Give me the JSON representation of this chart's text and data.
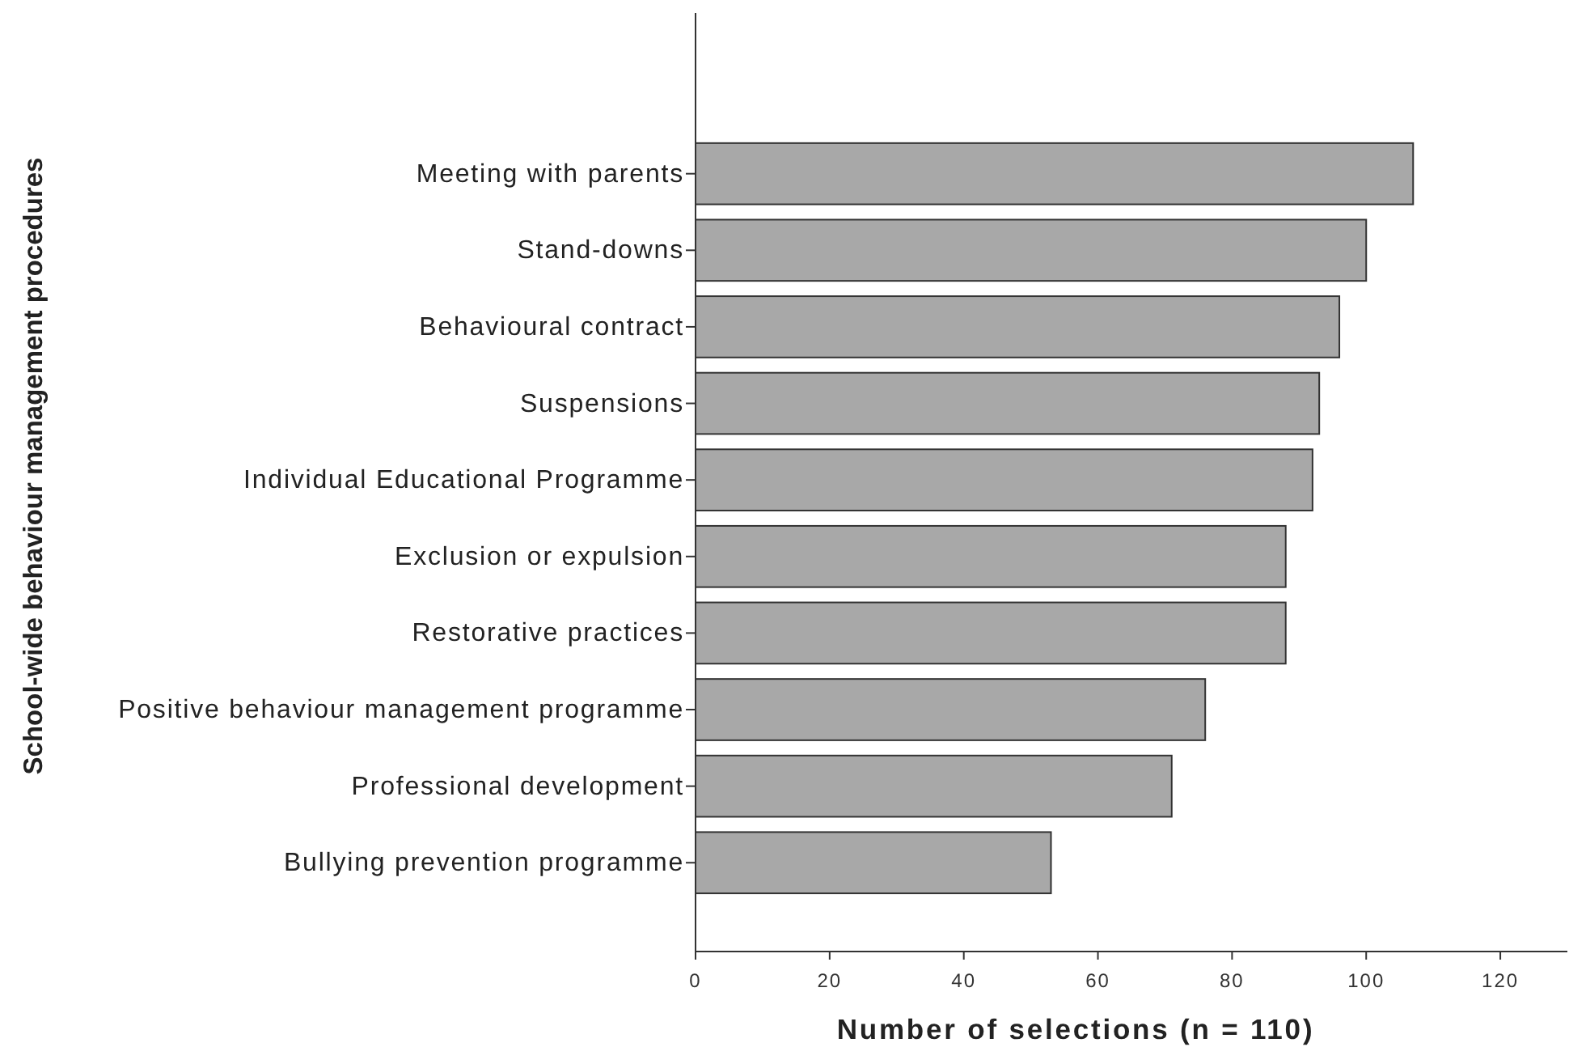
{
  "chart_data": {
    "type": "bar",
    "orientation": "horizontal",
    "xlabel": "Number of selections (n = 110)",
    "ylabel": "School-wide behaviour management procedures",
    "categories": [
      "Meeting with parents",
      "Stand-downs",
      "Behavioural contract",
      "Suspensions",
      "Individual Educational Programme",
      "Exclusion or expulsion",
      "Restorative practices",
      "Positive behaviour management programme",
      "Professional development",
      "Bullying prevention programme"
    ],
    "values": [
      107,
      100,
      96,
      93,
      92,
      88,
      88,
      76,
      71,
      53
    ],
    "color": "#a8a8a8",
    "xlim": [
      0,
      130
    ],
    "xticks": [
      0,
      20,
      40,
      60,
      80,
      100,
      120
    ],
    "grid": false
  }
}
